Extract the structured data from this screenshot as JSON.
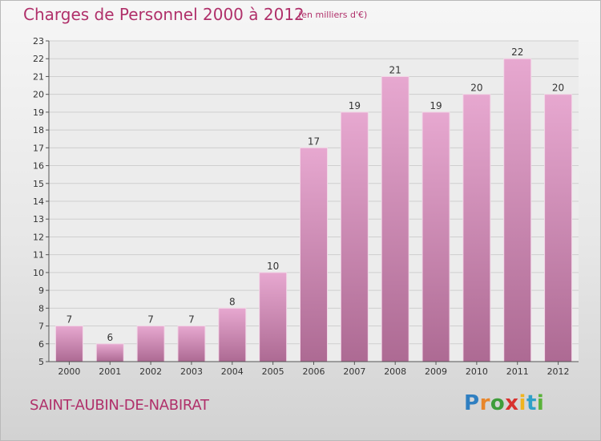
{
  "header": {
    "title": "Charges de Personnel 2000 à 2012",
    "subtitle": "(en milliers d'€)"
  },
  "footer": {
    "town": "SAINT-AUBIN-DE-NABIRAT",
    "logo_text": "Proxiti"
  },
  "colors": {
    "accent": "#b0306a",
    "bar_top": "#e7a8d0",
    "bar_bottom": "#ad6a93",
    "grid": "#cfcfcf",
    "axis": "#555555"
  },
  "chart_data": {
    "type": "bar",
    "title": "Charges de Personnel 2000 à 2012",
    "subtitle": "(en milliers d'€)",
    "categories": [
      "2000",
      "2001",
      "2002",
      "2003",
      "2004",
      "2005",
      "2006",
      "2007",
      "2008",
      "2009",
      "2010",
      "2011",
      "2012"
    ],
    "values": [
      7,
      6,
      7,
      7,
      8,
      10,
      17,
      19,
      21,
      19,
      20,
      22,
      20
    ],
    "ylim": [
      5,
      23
    ],
    "yticks": [
      5,
      6,
      7,
      8,
      9,
      10,
      11,
      12,
      13,
      14,
      15,
      16,
      17,
      18,
      19,
      20,
      21,
      22,
      23
    ],
    "grid": true,
    "data_labels": true
  }
}
